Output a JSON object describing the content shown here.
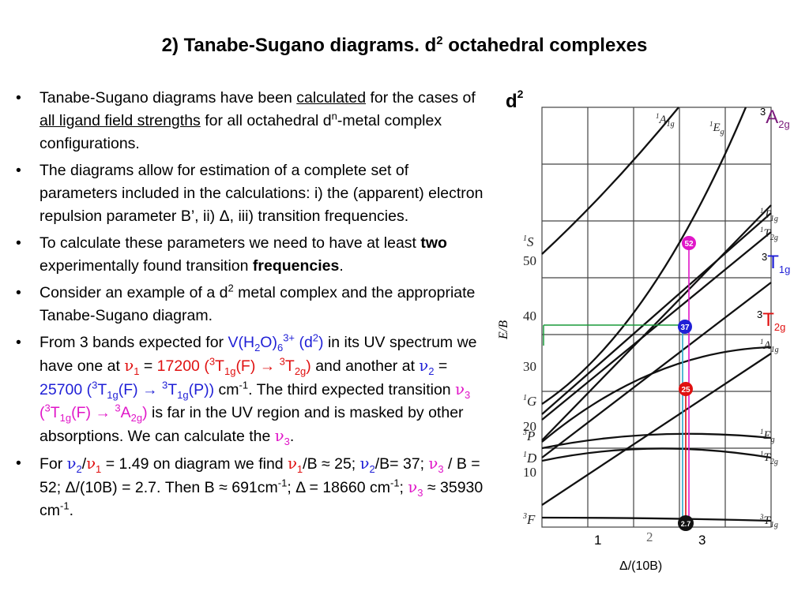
{
  "slide": {
    "title_main": "2) Tanabe-Sugano diagrams. d",
    "title_sup": "2",
    "title_end": " octahedral complexes"
  },
  "bullets": {
    "b1": {
      "t1": "Tanabe-Sugano diagrams have been ",
      "u1": "calculated",
      "t2": " for the cases of ",
      "u2": "all ligand field strengths",
      "t3": " for all octahedral d",
      "sup": "n",
      "t4": "-metal complex configurations."
    },
    "b2": {
      "text": "The diagrams allow for estimation of a complete set of parameters included in the calculations: i) the (apparent) electron repulsion parameter B’, ii) Δ, iii) transition frequencies."
    },
    "b3": {
      "t1": "To calculate these parameters we need to have at least ",
      "b1": "two",
      "t2": " experimentally found transition ",
      "b2": "frequencies",
      "t3": "."
    },
    "b4": {
      "t1": "Consider an example of a d",
      "sup": "2",
      "t2": " metal complex and the appropriate Tanabe-Sugano diagram."
    },
    "b5": {
      "t1": "From 3 bands expected for ",
      "complex": "V(H",
      "complex_sub1": "2",
      "complex_mid": "O)",
      "complex_sub2": "6",
      "complex_sup": "3+",
      "complex_d": " (d",
      "complex_d_sup": "2",
      "complex_end": ")",
      "t2": " in its UV spectrum we have one at ",
      "nu": "ν",
      "nu1_sub": "1",
      "eq": " = ",
      "v1_val": "17200 (",
      "v1_a_sup": "3",
      "v1_a": "T",
      "v1_a_sub": "1g",
      "v1_a_end": "(F) → ",
      "v1_b_sup": "3",
      "v1_b": "T",
      "v1_b_sub": "2g",
      "v1_b_end": ")",
      "t3": " and another at ",
      "nu2_sub": "2",
      "v2_val": "25700 (",
      "v2_a_sup": "3",
      "v2_a": "T",
      "v2_a_sub": "1g",
      "v2_a_end": "(F) → ",
      "v2_b_sup": "3",
      "v2_b": "T",
      "v2_b_sub": "1g",
      "v2_b_end": "(P))",
      "t4": " cm",
      "cm_sup": "-1",
      "t5": ".  The third expected transition ",
      "nu3_sub": "3",
      "v3_a": " (",
      "v3_a_sup": "3",
      "v3_a_T": "T",
      "v3_a_sub": "1g",
      "v3_a_end": "(F) → ",
      "v3_b_sup": "3",
      "v3_b": "A",
      "v3_b_sub": "2g",
      "v3_b_end": ")",
      "t6": " is far in the UV region and is masked by other absorptions. We can calculate the ",
      "t7": "."
    },
    "b6": {
      "t1": "For ",
      "ratio_sep": "/",
      "t2": " = 1.49 on diagram we find ",
      "t3": "/B ≈ 25; ",
      "t4": "/B= 37; ",
      "t5": " / B = 52; Δ/(10B) = 2.7. Then B ≈ 691cm",
      "sup_m1": "-1",
      "t6": "; Δ = 18660 cm",
      "t7": "; ",
      "t8": " ≈ 35930 cm",
      "t9": "."
    }
  },
  "diagram": {
    "d_label": "d",
    "d_sup": "2",
    "y_axis_label": "E/B",
    "y_ticks": [
      "50",
      "40",
      "30",
      "20",
      "10"
    ],
    "x_ticks": [
      "1",
      "2",
      "3"
    ],
    "x_axis_label": "Δ/(10B)",
    "left_terms": [
      {
        "sup": "1",
        "letter": "S"
      },
      {
        "sup": "1",
        "letter": "G"
      },
      {
        "sup": "3",
        "letter": "P"
      },
      {
        "sup": "1",
        "letter": "D"
      },
      {
        "sup": "3",
        "letter": "F"
      }
    ],
    "right_terms": [
      {
        "sup": "1",
        "letter": "T",
        "sub": "1g"
      },
      {
        "sup": "1",
        "letter": "T",
        "sub": "2g"
      },
      {
        "sup": "1",
        "letter": "A",
        "sub": "1g"
      },
      {
        "sup": "1",
        "letter": "E",
        "sub": "g"
      },
      {
        "sup": "1",
        "letter": "T",
        "sub": "2g"
      },
      {
        "sup": "3",
        "letter": "T",
        "sub": "1g"
      }
    ],
    "top_terms": [
      {
        "sup": "1",
        "letter": "A",
        "sub": "1g"
      },
      {
        "sup": "1",
        "letter": "E",
        "sub": "g"
      }
    ],
    "big_labels": [
      {
        "sup": "3",
        "letter": "A",
        "sub": "2g"
      },
      {
        "sup": "3",
        "letter": "T",
        "sub": "1g"
      },
      {
        "sup": "3",
        "letter": "T",
        "sub": "2g"
      }
    ],
    "markers": [
      "52",
      "37",
      "25",
      "2.7"
    ],
    "colors": {
      "magenta": "#e016c8",
      "blue": "#1f1fd6",
      "red": "#e01010",
      "green": "#1a9a3a",
      "cyan": "#2aa6c9",
      "purple": "#7a1a7a"
    }
  }
}
